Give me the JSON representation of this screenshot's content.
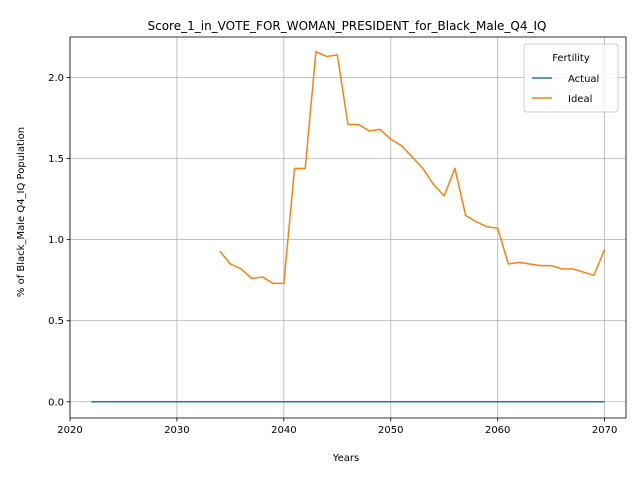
{
  "chart_data": {
    "type": "line",
    "title": "Score_1_in_VOTE_FOR_WOMAN_PRESIDENT_for_Black_Male_Q4_IQ",
    "xlabel": "Years",
    "ylabel": "% of Black_Male Q4_IQ Population",
    "xlim": [
      2020,
      2072
    ],
    "ylim": [
      -0.1,
      2.25
    ],
    "xticks": [
      2020,
      2030,
      2040,
      2050,
      2060,
      2070
    ],
    "yticks": [
      0.0,
      0.5,
      1.0,
      1.5,
      2.0
    ],
    "xtick_labels": [
      "2020",
      "2030",
      "2040",
      "2050",
      "2060",
      "2070"
    ],
    "ytick_labels": [
      "0.0",
      "0.5",
      "1.0",
      "1.5",
      "2.0"
    ],
    "grid": true,
    "legend": {
      "title": "Fertility",
      "placement": "top-right"
    },
    "series": [
      {
        "name": "Actual",
        "color": "#1f77b4",
        "x": [
          2022,
          2070
        ],
        "y": [
          0.0,
          0.0
        ]
      },
      {
        "name": "Ideal",
        "color": "#ff7f0e",
        "x": [
          2034,
          2035,
          2036,
          2037,
          2038,
          2039,
          2040,
          2041,
          2042,
          2043,
          2044,
          2045,
          2046,
          2047,
          2048,
          2049,
          2050,
          2051,
          2052,
          2053,
          2054,
          2055,
          2056,
          2057,
          2058,
          2059,
          2060,
          2061,
          2062,
          2063,
          2064,
          2065,
          2066,
          2067,
          2068,
          2069,
          2070
        ],
        "y": [
          0.93,
          0.85,
          0.82,
          0.76,
          0.77,
          0.73,
          0.73,
          1.44,
          1.44,
          2.16,
          2.13,
          2.14,
          1.71,
          1.71,
          1.67,
          1.68,
          1.62,
          1.58,
          1.51,
          1.44,
          1.34,
          1.27,
          1.44,
          1.15,
          1.11,
          1.08,
          1.07,
          0.85,
          0.86,
          0.85,
          0.84,
          0.84,
          0.82,
          0.82,
          0.8,
          0.78,
          0.94
        ]
      }
    ]
  }
}
